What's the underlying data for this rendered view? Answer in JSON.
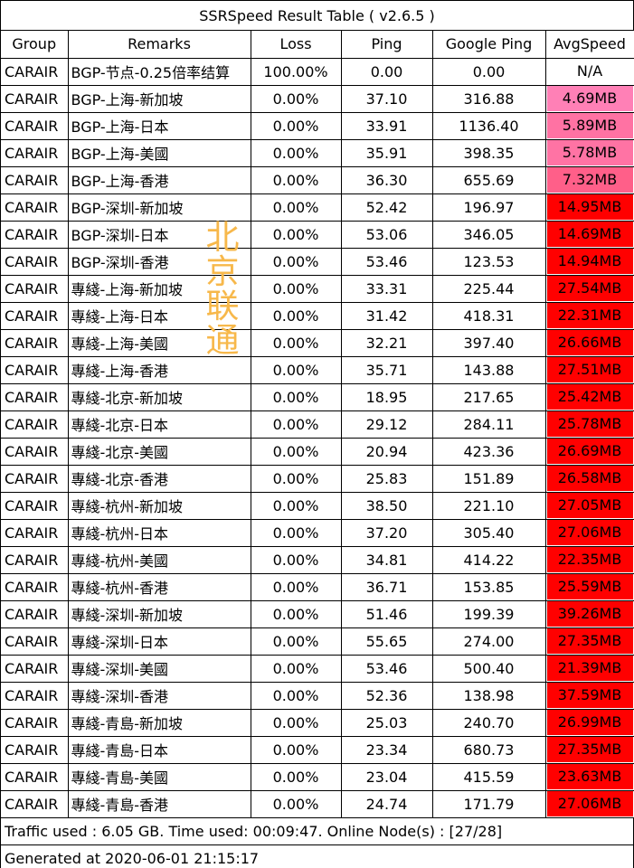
{
  "title": "SSRSpeed Result Table ( v2.6.5 )",
  "headers": [
    "Group",
    "Remarks",
    "Loss",
    "Ping",
    "Google Ping",
    "AvgSpeed"
  ],
  "rows": [
    {
      "group": "CARAIR",
      "remarks": "BGP-节点-0.25倍率结算",
      "loss": "100.00%",
      "ping": "0.00",
      "google_ping": "0.00",
      "speed": "N/A",
      "speed_color": "#ffffff"
    },
    {
      "group": "CARAIR",
      "remarks": "BGP-上海-新加坡",
      "loss": "0.00%",
      "ping": "37.10",
      "google_ping": "316.88",
      "speed": "4.69MB",
      "speed_color": "#ff80b6"
    },
    {
      "group": "CARAIR",
      "remarks": "BGP-上海-日本",
      "loss": "0.00%",
      "ping": "33.91",
      "google_ping": "1136.40",
      "speed": "5.89MB",
      "speed_color": "#ff72a3"
    },
    {
      "group": "CARAIR",
      "remarks": "BGP-上海-美國",
      "loss": "0.00%",
      "ping": "35.91",
      "google_ping": "398.35",
      "speed": "5.78MB",
      "speed_color": "#ff73a4"
    },
    {
      "group": "CARAIR",
      "remarks": "BGP-上海-香港",
      "loss": "0.00%",
      "ping": "36.30",
      "google_ping": "655.69",
      "speed": "7.32MB",
      "speed_color": "#ff5f89"
    },
    {
      "group": "CARAIR",
      "remarks": "BGP-深圳-新加坡",
      "loss": "0.00%",
      "ping": "52.42",
      "google_ping": "196.97",
      "speed": "14.95MB",
      "speed_color": "#ff0000"
    },
    {
      "group": "CARAIR",
      "remarks": "BGP-深圳-日本",
      "loss": "0.00%",
      "ping": "53.06",
      "google_ping": "346.05",
      "speed": "14.69MB",
      "speed_color": "#ff0000"
    },
    {
      "group": "CARAIR",
      "remarks": "BGP-深圳-香港",
      "loss": "0.00%",
      "ping": "53.46",
      "google_ping": "123.53",
      "speed": "14.94MB",
      "speed_color": "#ff0000"
    },
    {
      "group": "CARAIR",
      "remarks": "專綫-上海-新加坡",
      "loss": "0.00%",
      "ping": "33.31",
      "google_ping": "225.44",
      "speed": "27.54MB",
      "speed_color": "#ff0000"
    },
    {
      "group": "CARAIR",
      "remarks": "專綫-上海-日本",
      "loss": "0.00%",
      "ping": "31.42",
      "google_ping": "418.31",
      "speed": "22.31MB",
      "speed_color": "#ff0000"
    },
    {
      "group": "CARAIR",
      "remarks": "專綫-上海-美國",
      "loss": "0.00%",
      "ping": "32.21",
      "google_ping": "397.40",
      "speed": "26.66MB",
      "speed_color": "#ff0000"
    },
    {
      "group": "CARAIR",
      "remarks": "專綫-上海-香港",
      "loss": "0.00%",
      "ping": "35.71",
      "google_ping": "143.88",
      "speed": "27.51MB",
      "speed_color": "#ff0000"
    },
    {
      "group": "CARAIR",
      "remarks": "專綫-北京-新加坡",
      "loss": "0.00%",
      "ping": "18.95",
      "google_ping": "217.65",
      "speed": "25.42MB",
      "speed_color": "#ff0000"
    },
    {
      "group": "CARAIR",
      "remarks": "專綫-北京-日本",
      "loss": "0.00%",
      "ping": "29.12",
      "google_ping": "284.11",
      "speed": "25.78MB",
      "speed_color": "#ff0000"
    },
    {
      "group": "CARAIR",
      "remarks": "專綫-北京-美國",
      "loss": "0.00%",
      "ping": "20.94",
      "google_ping": "423.36",
      "speed": "26.69MB",
      "speed_color": "#ff0000"
    },
    {
      "group": "CARAIR",
      "remarks": "專綫-北京-香港",
      "loss": "0.00%",
      "ping": "25.83",
      "google_ping": "151.89",
      "speed": "26.58MB",
      "speed_color": "#ff0000"
    },
    {
      "group": "CARAIR",
      "remarks": "專綫-杭州-新加坡",
      "loss": "0.00%",
      "ping": "38.50",
      "google_ping": "221.10",
      "speed": "27.05MB",
      "speed_color": "#ff0000"
    },
    {
      "group": "CARAIR",
      "remarks": "專綫-杭州-日本",
      "loss": "0.00%",
      "ping": "37.20",
      "google_ping": "305.40",
      "speed": "27.06MB",
      "speed_color": "#ff0000"
    },
    {
      "group": "CARAIR",
      "remarks": "專綫-杭州-美國",
      "loss": "0.00%",
      "ping": "34.81",
      "google_ping": "414.22",
      "speed": "22.35MB",
      "speed_color": "#ff0000"
    },
    {
      "group": "CARAIR",
      "remarks": "專綫-杭州-香港",
      "loss": "0.00%",
      "ping": "36.71",
      "google_ping": "153.85",
      "speed": "25.59MB",
      "speed_color": "#ff0000"
    },
    {
      "group": "CARAIR",
      "remarks": "專綫-深圳-新加坡",
      "loss": "0.00%",
      "ping": "51.46",
      "google_ping": "199.39",
      "speed": "39.26MB",
      "speed_color": "#ff0000"
    },
    {
      "group": "CARAIR",
      "remarks": "專綫-深圳-日本",
      "loss": "0.00%",
      "ping": "55.65",
      "google_ping": "274.00",
      "speed": "27.35MB",
      "speed_color": "#ff0000"
    },
    {
      "group": "CARAIR",
      "remarks": "專綫-深圳-美國",
      "loss": "0.00%",
      "ping": "53.46",
      "google_ping": "500.40",
      "speed": "21.39MB",
      "speed_color": "#ff0000"
    },
    {
      "group": "CARAIR",
      "remarks": "專綫-深圳-香港",
      "loss": "0.00%",
      "ping": "52.36",
      "google_ping": "138.98",
      "speed": "37.59MB",
      "speed_color": "#ff0000"
    },
    {
      "group": "CARAIR",
      "remarks": "專綫-青島-新加坡",
      "loss": "0.00%",
      "ping": "25.03",
      "google_ping": "240.70",
      "speed": "26.99MB",
      "speed_color": "#ff0000"
    },
    {
      "group": "CARAIR",
      "remarks": "專綫-青島-日本",
      "loss": "0.00%",
      "ping": "23.34",
      "google_ping": "680.73",
      "speed": "27.35MB",
      "speed_color": "#ff0000"
    },
    {
      "group": "CARAIR",
      "remarks": "專綫-青島-美國",
      "loss": "0.00%",
      "ping": "23.04",
      "google_ping": "415.59",
      "speed": "23.63MB",
      "speed_color": "#ff0000"
    },
    {
      "group": "CARAIR",
      "remarks": "專綫-青島-香港",
      "loss": "0.00%",
      "ping": "24.74",
      "google_ping": "171.79",
      "speed": "27.06MB",
      "speed_color": "#ff0000"
    }
  ],
  "footer": {
    "traffic": "Traffic used : 6.05 GB. Time used: 00:09:47. Online Node(s) : [27/28]",
    "generated": "Generated at 2020-06-01 21:15:17"
  },
  "watermark": [
    "北",
    "京",
    "联",
    "通"
  ]
}
